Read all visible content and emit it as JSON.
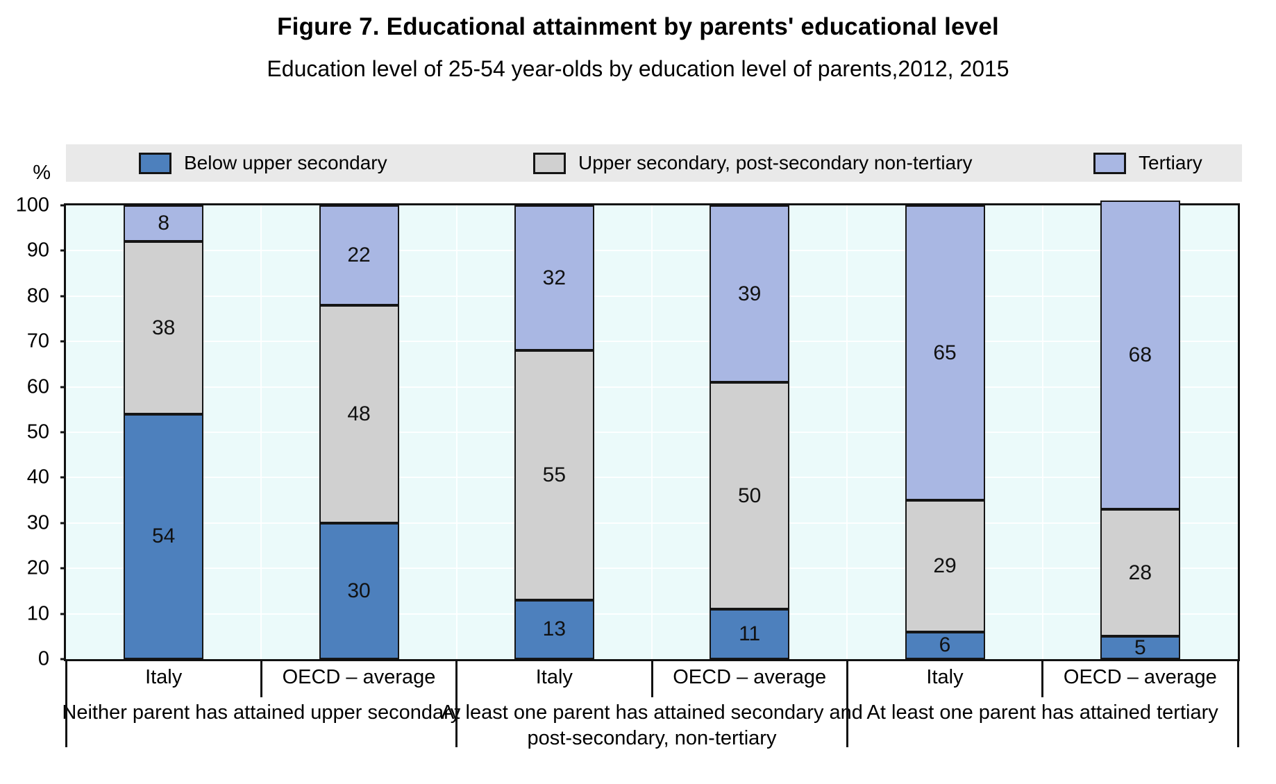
{
  "title": "Figure 7. Educational attainment by parents' educational level",
  "subtitle": "Education level of 25-54 year-olds by education level of parents,2012, 2015",
  "y_axis": {
    "unit_label": "%",
    "ticks": [
      0,
      10,
      20,
      30,
      40,
      50,
      60,
      70,
      80,
      90,
      100
    ]
  },
  "chart_data": {
    "type": "bar",
    "stacked": true,
    "orientation": "vertical",
    "ylim": [
      0,
      100
    ],
    "grid": true,
    "legend_position": "top",
    "plot_background": "#ebfafa",
    "legend_background": "#e9e9e9",
    "categories": [
      "Italy",
      "OECD – average",
      "Italy",
      "OECD – average",
      "Italy",
      "OECD – average"
    ],
    "series": [
      {
        "name": "Below upper secondary",
        "color": "#4d80bd",
        "values": [
          54,
          30,
          13,
          11,
          6,
          5
        ]
      },
      {
        "name": "Upper secondary, post-secondary non-tertiary",
        "color": "#d0d0d0",
        "values": [
          38,
          48,
          55,
          50,
          29,
          28
        ]
      },
      {
        "name": "Tertiary",
        "color": "#a9b7e3",
        "values": [
          8,
          22,
          32,
          39,
          65,
          68
        ]
      }
    ],
    "groups": [
      {
        "label": "Neither parent has attained upper secondary",
        "categories": [
          "Italy",
          "OECD – average"
        ]
      },
      {
        "label": "At least one parent has attained secondary and post-secondary, non-tertiary",
        "categories": [
          "Italy",
          "OECD – average"
        ]
      },
      {
        "label": "At least one parent has attained tertiary",
        "categories": [
          "Italy",
          "OECD – average"
        ]
      }
    ]
  }
}
